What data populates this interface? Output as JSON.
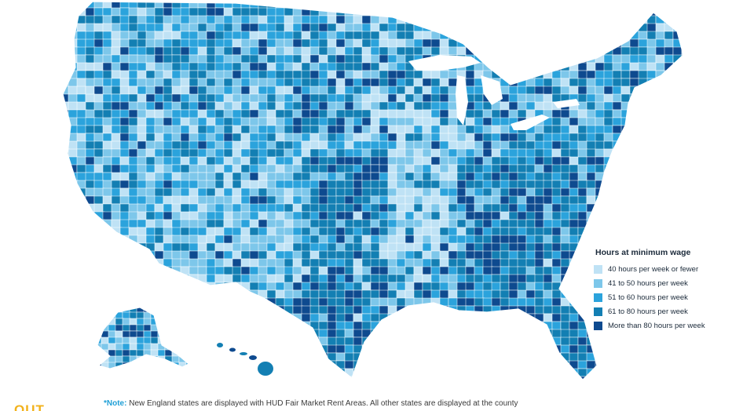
{
  "legend": {
    "title": "Hours at minimum wage",
    "items": [
      {
        "label": "40 hours per week or fewer",
        "color": "#bfe2f5"
      },
      {
        "label": "41 to 50 hours per week",
        "color": "#7dc7ea"
      },
      {
        "label": "51 to 60 hours per week",
        "color": "#2ba3dc"
      },
      {
        "label": "61 to 80 hours per week",
        "color": "#137fb3"
      },
      {
        "label": "More than 80 hours per week",
        "color": "#0e4a8f"
      }
    ]
  },
  "note": {
    "prefix": "*Note:",
    "text": " New England states are displayed with HUD Fair Market Rent Areas. All other states are displayed at the county"
  },
  "logo": {
    "text": "OUT"
  },
  "colors": {
    "border": "#ffffff",
    "background": "#ffffff"
  }
}
